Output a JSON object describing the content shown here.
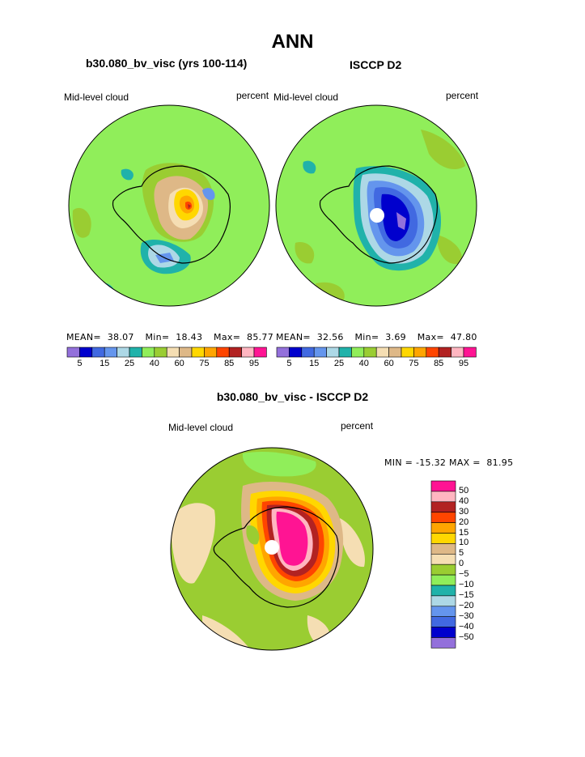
{
  "figure": {
    "title": "ANN"
  },
  "panels": {
    "left": {
      "case_title": "b30.080_bv_visc (yrs 100-114)",
      "variable": "Mid-level cloud",
      "units": "percent",
      "stats": {
        "mean_label": "MEAN=",
        "mean": "38.07",
        "min_label": "Min=",
        "min": "18.43",
        "max_label": "Max=",
        "max": "85.77"
      }
    },
    "right": {
      "case_title": "ISCCP D2",
      "variable": "Mid-level cloud",
      "units": "percent",
      "stats": {
        "mean_label": "MEAN=",
        "mean": "32.56",
        "min_label": "Min=",
        "min": "3.69",
        "max_label": "Max=",
        "max": "47.80"
      }
    },
    "diff": {
      "case_title": "b30.080_bv_visc - ISCCP D2",
      "variable": "Mid-level cloud",
      "units": "percent",
      "minmax": "MIN = -15.32 MAX =  81.95"
    }
  },
  "colorbar_top": {
    "colors": [
      "#9370db",
      "#0000cd",
      "#4169e1",
      "#6495ed",
      "#add8e6",
      "#20b2aa",
      "#90ee5a",
      "#9acd32",
      "#f5deb3",
      "#deb887",
      "#ffd700",
      "#ffa500",
      "#ff4500",
      "#b22222",
      "#ffb6c1",
      "#ff1493"
    ],
    "labels": [
      "5",
      "15",
      "25",
      "40",
      "60",
      "75",
      "85",
      "95"
    ]
  },
  "colorbar_diff": {
    "colors": [
      "#ff1493",
      "#ffb6c1",
      "#b22222",
      "#ff4500",
      "#ffa500",
      "#ffd700",
      "#deb887",
      "#f5deb3",
      "#9acd32",
      "#90ee5a",
      "#20b2aa",
      "#add8e6",
      "#6495ed",
      "#4169e1",
      "#0000cd",
      "#9370db"
    ],
    "labels": [
      "50",
      "40",
      "30",
      "20",
      "15",
      "10",
      "5",
      "0",
      "−5",
      "−10",
      "−15",
      "−20",
      "−30",
      "−40",
      "−50"
    ]
  },
  "colors": {
    "background_field": "#90ee5a",
    "coastline": "#000000"
  }
}
